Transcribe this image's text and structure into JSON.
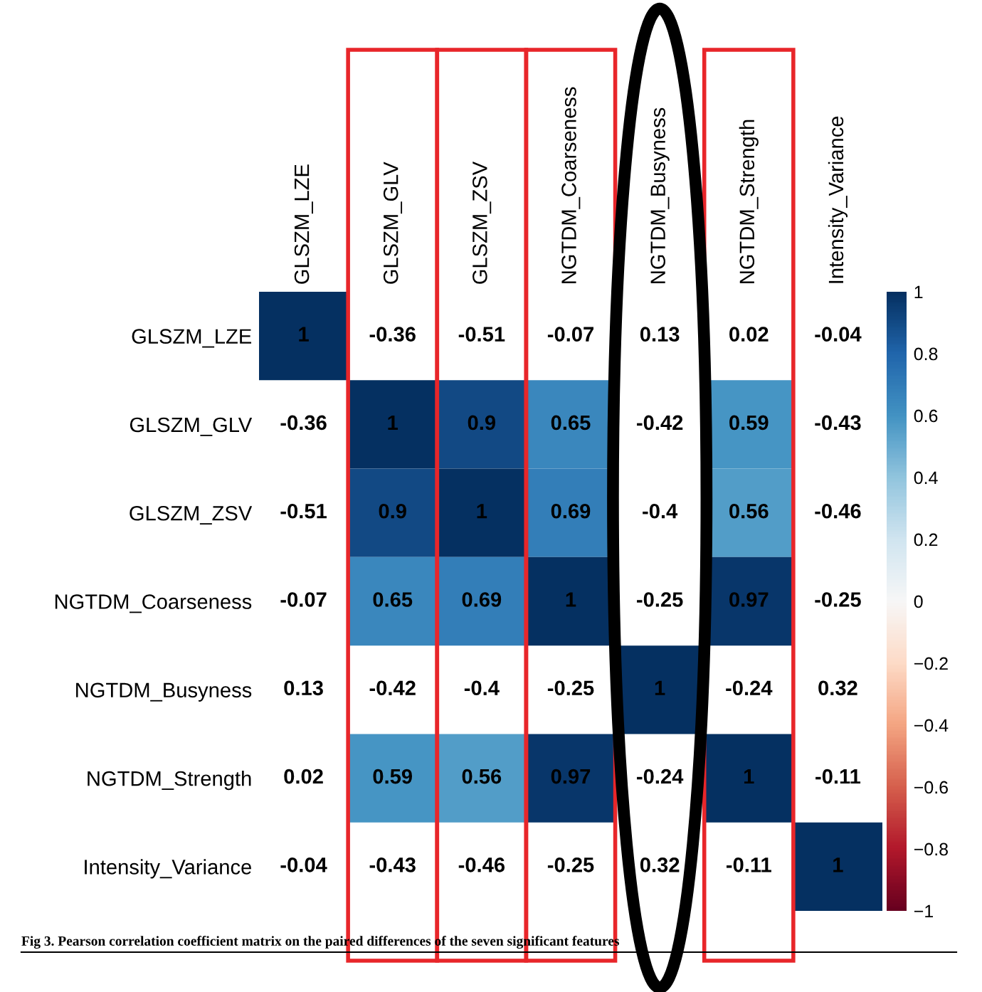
{
  "chart_data": {
    "type": "heatmap",
    "categories": [
      "GLSZM_LZE",
      "GLSZM_GLV",
      "GLSZM_ZSV",
      "NGTDM_Coarseness",
      "NGTDM_Busyness",
      "NGTDM_Strength",
      "Intensity_Variance"
    ],
    "y_categories": [
      "GLSZM_LZE",
      "GLSZM_GLV",
      "GLSZM_ZSV",
      "NGTDM_Coarseness",
      "NGTDM_Busyness",
      "NGTDM_Strength",
      "Intensity_Variance"
    ],
    "cells": [
      [
        1,
        null,
        null,
        null,
        null,
        null,
        null
      ],
      [
        null,
        1,
        0.9,
        0.65,
        null,
        0.59,
        null
      ],
      [
        null,
        0.9,
        1,
        0.69,
        null,
        0.56,
        null
      ],
      [
        null,
        0.65,
        0.69,
        1,
        null,
        0.97,
        null
      ],
      [
        null,
        null,
        null,
        null,
        1,
        null,
        null
      ],
      [
        null,
        0.59,
        0.56,
        0.97,
        null,
        1,
        null
      ],
      [
        null,
        null,
        null,
        null,
        null,
        null,
        1
      ]
    ],
    "cell_labels": [
      [
        "1",
        "-0.36",
        "-0.51",
        "-0.07",
        "0.13",
        "0.02",
        "-0.04"
      ],
      [
        "-0.36",
        "1",
        "0.9",
        "0.65",
        "-0.42",
        "0.59",
        "-0.43"
      ],
      [
        "-0.51",
        "0.9",
        "1",
        "0.69",
        "-0.4",
        "0.56",
        "-0.46"
      ],
      [
        "-0.07",
        "0.65",
        "0.69",
        "1",
        "-0.25",
        "0.97",
        "-0.25"
      ],
      [
        "0.13",
        "-0.42",
        "-0.4",
        "-0.25",
        "1",
        "-0.24",
        "0.32"
      ],
      [
        "0.02",
        "0.59",
        "0.56",
        "0.97",
        "-0.24",
        "1",
        "-0.11"
      ],
      [
        "-0.04",
        "-0.43",
        "-0.46",
        "-0.25",
        "0.32",
        "-0.11",
        "1"
      ]
    ],
    "clim": [
      -1,
      1
    ],
    "cticks": [
      -1,
      -0.8,
      -0.6,
      -0.4,
      -0.2,
      0,
      0.2,
      0.4,
      0.6,
      0.8,
      1
    ],
    "annotations": [
      "Fig 3. Pearson correlation coefficient matrix on the paired differences of the seven significant features"
    ]
  }
}
